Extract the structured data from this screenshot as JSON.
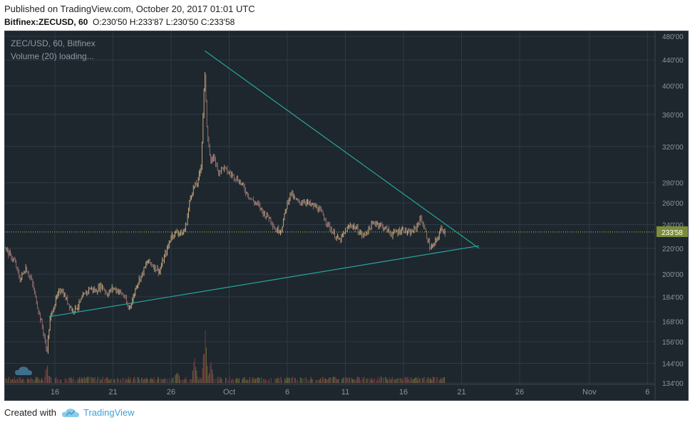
{
  "header": {
    "published": "Published on TradingView.com, October 20, 2017 01:01 UTC",
    "symbol": "Bitfinex:ZECUSD, 60",
    "ohlc": "O:230'50 H:233'87 L:230'50 C:233'58"
  },
  "footer": {
    "created_with": "Created with",
    "brand": "TradingView"
  },
  "legend": {
    "title": "ZEC/USD, 60, Bitfinex",
    "volume": "Volume (20) loading..."
  },
  "colors": {
    "background": "#1e262e",
    "grid": "#2f3a44",
    "up_candle": "#c4a87a",
    "down_candle": "#8f6e6e",
    "trendline": "#26a69a",
    "current_price_line": "#b6c94c",
    "price_tag": "#7c8e3a",
    "volume": "#6f6a3a",
    "axis_text": "#8a96a0"
  },
  "chart_data": {
    "type": "candlestick",
    "scale": "log",
    "y_ticks": [
      "134'00",
      "144'00",
      "156'00",
      "168'00",
      "184'00",
      "200'00",
      "220'00",
      "240'00",
      "260'00",
      "280'00",
      "320'00",
      "360'00",
      "400'00",
      "440'00",
      "480'00"
    ],
    "y_tick_values": [
      134,
      144,
      156,
      168,
      184,
      200,
      220,
      240,
      260,
      280,
      320,
      360,
      400,
      440,
      480
    ],
    "x_ticks": [
      {
        "label": "16",
        "day": 16
      },
      {
        "label": "21",
        "day": 21
      },
      {
        "label": "26",
        "day": 26
      },
      {
        "label": "Oct",
        "day": 31
      },
      {
        "label": "6",
        "day": 36
      },
      {
        "label": "11",
        "day": 41
      },
      {
        "label": "16",
        "day": 46
      },
      {
        "label": "21",
        "day": 51
      },
      {
        "label": "26",
        "day": 56
      },
      {
        "label": "Nov",
        "day": 62
      },
      {
        "label": "6",
        "day": 67
      }
    ],
    "x_unit": "days from 2017-09-01",
    "current_price": 233.58,
    "current_price_label": "233'58",
    "price_path": [
      [
        11.0,
        220
      ],
      [
        11.5,
        225
      ],
      [
        12.0,
        216
      ],
      [
        12.5,
        210
      ],
      [
        13.0,
        196
      ],
      [
        13.5,
        205
      ],
      [
        14.0,
        195
      ],
      [
        14.5,
        178
      ],
      [
        15.0,
        162
      ],
      [
        15.3,
        150
      ],
      [
        15.6,
        170
      ],
      [
        16.0,
        180
      ],
      [
        16.5,
        190
      ],
      [
        17.0,
        182
      ],
      [
        17.5,
        175
      ],
      [
        18.0,
        178
      ],
      [
        18.5,
        185
      ],
      [
        19.0,
        190
      ],
      [
        19.5,
        188
      ],
      [
        20.0,
        192
      ],
      [
        20.5,
        186
      ],
      [
        21.0,
        190
      ],
      [
        21.5,
        188
      ],
      [
        22.0,
        184
      ],
      [
        22.3,
        176
      ],
      [
        22.7,
        182
      ],
      [
        23.0,
        192
      ],
      [
        23.5,
        200
      ],
      [
        24.0,
        210
      ],
      [
        24.5,
        206
      ],
      [
        25.0,
        202
      ],
      [
        25.3,
        210
      ],
      [
        25.7,
        220
      ],
      [
        26.0,
        230
      ],
      [
        26.5,
        234
      ],
      [
        27.0,
        232
      ],
      [
        27.3,
        240
      ],
      [
        27.7,
        268
      ],
      [
        28.0,
        276
      ],
      [
        28.3,
        280
      ],
      [
        28.6,
        300
      ],
      [
        28.9,
        420
      ],
      [
        29.1,
        340
      ],
      [
        29.4,
        300
      ],
      [
        29.7,
        310
      ],
      [
        30.0,
        292
      ],
      [
        30.5,
        296
      ],
      [
        31.0,
        290
      ],
      [
        31.5,
        286
      ],
      [
        32.0,
        280
      ],
      [
        32.5,
        270
      ],
      [
        33.0,
        262
      ],
      [
        33.5,
        258
      ],
      [
        34.0,
        250
      ],
      [
        34.5,
        246
      ],
      [
        35.0,
        235
      ],
      [
        35.5,
        236
      ],
      [
        36.0,
        260
      ],
      [
        36.3,
        270
      ],
      [
        36.6,
        264
      ],
      [
        37.0,
        260
      ],
      [
        37.5,
        262
      ],
      [
        38.0,
        258
      ],
      [
        38.5,
        256
      ],
      [
        39.0,
        250
      ],
      [
        39.5,
        240
      ],
      [
        40.0,
        232
      ],
      [
        40.5,
        226
      ],
      [
        41.0,
        234
      ],
      [
        41.5,
        240
      ],
      [
        42.0,
        236
      ],
      [
        42.5,
        230
      ],
      [
        43.0,
        236
      ],
      [
        43.5,
        242
      ],
      [
        44.0,
        240
      ],
      [
        44.5,
        236
      ],
      [
        45.0,
        232
      ],
      [
        45.5,
        234
      ],
      [
        46.0,
        236
      ],
      [
        46.5,
        232
      ],
      [
        47.0,
        236
      ],
      [
        47.5,
        246
      ],
      [
        48.0,
        230
      ],
      [
        48.3,
        220
      ],
      [
        48.6,
        222
      ],
      [
        49.0,
        230
      ],
      [
        49.3,
        238
      ],
      [
        49.6,
        232
      ]
    ],
    "volume_spikes": [
      [
        15.3,
        30
      ],
      [
        28.9,
        100
      ],
      [
        28.0,
        48
      ],
      [
        29.4,
        35
      ],
      [
        26.5,
        22
      ],
      [
        36.0,
        6
      ],
      [
        46.5,
        6
      ],
      [
        48.0,
        8
      ]
    ],
    "trendlines": [
      {
        "from": [
          28.9,
          455
        ],
        "to": [
          52.5,
          220
        ]
      },
      {
        "from": [
          15.5,
          171
        ],
        "to": [
          52.5,
          222
        ]
      }
    ]
  }
}
